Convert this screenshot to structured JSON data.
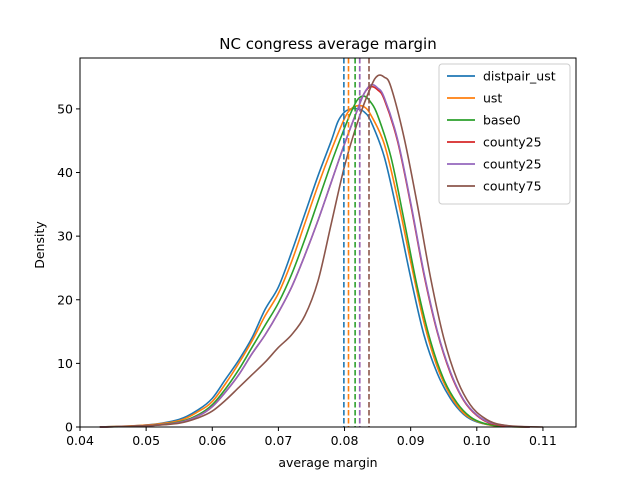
{
  "chart_data": {
    "type": "line",
    "title": "NC congress average margin",
    "xlabel": "average margin",
    "ylabel": "Density",
    "xlim": [
      0.04,
      0.115
    ],
    "ylim": [
      0,
      58
    ],
    "xticks": [
      0.04,
      0.05,
      0.06,
      0.07,
      0.08,
      0.09,
      0.1,
      0.11
    ],
    "xtick_labels": [
      "0.04",
      "0.05",
      "0.06",
      "0.07",
      "0.08",
      "0.09",
      "0.10",
      "0.11"
    ],
    "yticks": [
      0,
      10,
      20,
      30,
      40,
      50
    ],
    "ytick_labels": [
      "0",
      "10",
      "20",
      "30",
      "40",
      "50"
    ],
    "grid": false,
    "legend_position": "top-right",
    "series": [
      {
        "name": "distpair_ust",
        "color": "#1f77b4",
        "mean": 0.0799,
        "x": [
          0.043,
          0.05,
          0.055,
          0.058,
          0.06,
          0.062,
          0.064,
          0.066,
          0.068,
          0.07,
          0.072,
          0.074,
          0.076,
          0.078,
          0.079,
          0.08,
          0.081,
          0.082,
          0.083,
          0.084,
          0.086,
          0.088,
          0.09,
          0.092,
          0.094,
          0.096,
          0.098,
          0.1,
          0.103,
          0.108
        ],
        "y": [
          0,
          0.3,
          1.2,
          2.8,
          4.5,
          7.5,
          10.5,
          14,
          18.5,
          22,
          27.5,
          33.5,
          39.5,
          45,
          48,
          49.5,
          50,
          50,
          49.5,
          48,
          42.5,
          33.5,
          23.5,
          14.5,
          8.5,
          4.5,
          2,
          0.8,
          0.2,
          0
        ]
      },
      {
        "name": "ust",
        "color": "#ff7f0e",
        "mean": 0.0806,
        "x": [
          0.043,
          0.05,
          0.055,
          0.058,
          0.06,
          0.062,
          0.064,
          0.066,
          0.068,
          0.07,
          0.072,
          0.074,
          0.076,
          0.078,
          0.08,
          0.081,
          0.082,
          0.083,
          0.084,
          0.086,
          0.088,
          0.09,
          0.092,
          0.094,
          0.096,
          0.098,
          0.1,
          0.102,
          0.104,
          0.108
        ],
        "y": [
          0,
          0.3,
          1,
          2.5,
          4,
          6.8,
          10,
          13.5,
          17.5,
          21,
          26,
          32,
          38,
          43.5,
          48.5,
          50,
          50.5,
          50.3,
          49,
          44.5,
          36,
          26,
          16.5,
          9.5,
          5,
          2.2,
          0.9,
          0.3,
          0.1,
          0
        ]
      },
      {
        "name": "base0",
        "color": "#2ca02c",
        "mean": 0.0816,
        "x": [
          0.043,
          0.05,
          0.055,
          0.058,
          0.06,
          0.062,
          0.064,
          0.066,
          0.068,
          0.07,
          0.072,
          0.074,
          0.076,
          0.078,
          0.08,
          0.081,
          0.082,
          0.083,
          0.084,
          0.085,
          0.087,
          0.089,
          0.091,
          0.093,
          0.095,
          0.097,
          0.099,
          0.101,
          0.104,
          0.108
        ],
        "y": [
          0,
          0.2,
          0.8,
          2,
          3.5,
          6,
          9,
          12.5,
          16,
          19.5,
          24,
          29.5,
          35.5,
          41.5,
          47,
          49.5,
          51.5,
          52,
          51,
          49,
          42.5,
          32.5,
          22,
          13.5,
          7.5,
          3.8,
          1.6,
          0.6,
          0.1,
          0
        ]
      },
      {
        "name": "county25",
        "color": "#d62728",
        "mean": 0.0823,
        "x": [
          0.043,
          0.05,
          0.055,
          0.058,
          0.06,
          0.062,
          0.064,
          0.066,
          0.068,
          0.07,
          0.072,
          0.074,
          0.076,
          0.078,
          0.08,
          0.082,
          0.083,
          0.084,
          0.085,
          0.086,
          0.088,
          0.09,
          0.092,
          0.094,
          0.096,
          0.098,
          0.1,
          0.102,
          0.105,
          0.108
        ],
        "y": [
          0,
          0.2,
          0.7,
          1.8,
          3.2,
          5.5,
          8.2,
          11.5,
          14.5,
          18,
          22,
          27,
          32.5,
          38.5,
          44.5,
          50,
          52.5,
          53.5,
          53,
          51.5,
          45,
          35,
          24,
          15,
          8.5,
          4.2,
          1.8,
          0.6,
          0.1,
          0
        ]
      },
      {
        "name": "county25",
        "color": "#9467bd",
        "mean": 0.0823,
        "x": [
          0.043,
          0.05,
          0.055,
          0.058,
          0.06,
          0.062,
          0.064,
          0.066,
          0.068,
          0.07,
          0.072,
          0.074,
          0.076,
          0.078,
          0.08,
          0.082,
          0.083,
          0.084,
          0.085,
          0.086,
          0.088,
          0.09,
          0.092,
          0.094,
          0.096,
          0.098,
          0.1,
          0.102,
          0.105,
          0.108
        ],
        "y": [
          0,
          0.2,
          0.7,
          1.8,
          3.2,
          5.5,
          8.2,
          11.5,
          14.5,
          18,
          22,
          27,
          32.5,
          38.5,
          44.5,
          50,
          52.5,
          53.8,
          53.3,
          51.8,
          45.3,
          35.3,
          24.3,
          15.2,
          8.7,
          4.3,
          1.9,
          0.7,
          0.15,
          0
        ]
      },
      {
        "name": "county75",
        "color": "#8c564b",
        "mean": 0.0837,
        "x": [
          0.043,
          0.05,
          0.055,
          0.058,
          0.06,
          0.062,
          0.064,
          0.066,
          0.068,
          0.07,
          0.072,
          0.074,
          0.076,
          0.078,
          0.08,
          0.082,
          0.084,
          0.085,
          0.086,
          0.087,
          0.089,
          0.091,
          0.093,
          0.095,
          0.097,
          0.099,
          0.101,
          0.103,
          0.106,
          0.11
        ],
        "y": [
          0,
          0.2,
          0.6,
          1.5,
          2.5,
          4.2,
          6.2,
          8.2,
          10.2,
          12.5,
          14.5,
          17.5,
          23,
          32,
          41,
          48,
          53.5,
          55.2,
          55,
          53.5,
          45.5,
          35,
          23.5,
          14,
          7.5,
          3.5,
          1.5,
          0.5,
          0.1,
          0
        ]
      }
    ]
  }
}
